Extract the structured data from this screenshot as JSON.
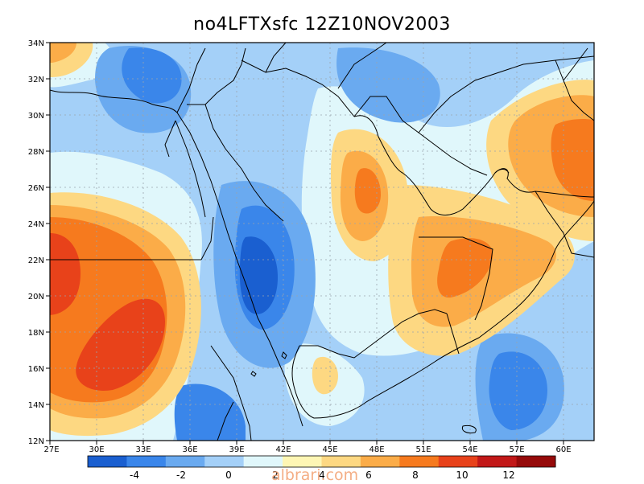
{
  "title": "no4LFTXsfc 12Z10NOV2003",
  "watermark": "albrari.com",
  "map": {
    "lat_labels": [
      "34N",
      "32N",
      "30N",
      "28N",
      "26N",
      "24N",
      "22N",
      "20N",
      "18N",
      "16N",
      "14N",
      "12N"
    ],
    "lon_labels": [
      "27E",
      "30E",
      "33E",
      "36E",
      "39E",
      "42E",
      "45E",
      "48E",
      "51E",
      "54E",
      "57E",
      "60E"
    ],
    "gridlines": true
  },
  "colorbar": {
    "colors": [
      "#1a5fd0",
      "#3a86ea",
      "#6aaaf0",
      "#a4d0f8",
      "#e0f7fb",
      "#fef6b4",
      "#fdd882",
      "#fbac48",
      "#f67a1e",
      "#e8421a",
      "#c21818",
      "#960a0a"
    ],
    "tick_labels": [
      "-4",
      "-2",
      "0",
      "2",
      "4",
      "6",
      "8",
      "10",
      "12"
    ]
  }
}
